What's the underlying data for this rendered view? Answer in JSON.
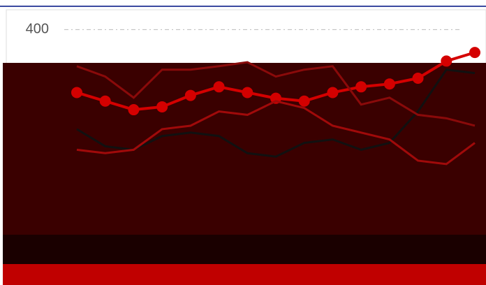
{
  "chart_data": {
    "type": "line",
    "x": [
      0,
      1,
      2,
      3,
      4,
      5,
      6,
      7,
      8,
      9,
      10,
      11,
      12,
      13,
      14
    ],
    "xlim": [
      0,
      14
    ],
    "ylim": [
      0,
      420
    ],
    "yticks": [
      400
    ],
    "grid": true,
    "series": [
      {
        "color": "#d40000",
        "marker": true,
        "values": [
          290,
          275,
          260,
          265,
          285,
          300,
          290,
          280,
          275,
          290,
          300,
          305,
          315,
          345,
          360
        ]
      },
      {
        "color": "#111111",
        "marker": false,
        "values": [
          226,
          196,
          190,
          214,
          220,
          214,
          184,
          178,
          202,
          208,
          190,
          202,
          257,
          330,
          324
        ]
      },
      {
        "color": "#8a0a0a",
        "marker": false,
        "values": [
          336,
          318,
          281,
          330,
          330,
          336,
          343,
          318,
          330,
          336,
          269,
          281,
          251,
          245,
          232
        ]
      },
      {
        "color": "#a00a0a",
        "marker": false,
        "values": [
          190,
          184,
          190,
          226,
          232,
          257,
          251,
          275,
          263,
          232,
          220,
          208,
          171,
          165,
          202
        ]
      }
    ]
  }
}
